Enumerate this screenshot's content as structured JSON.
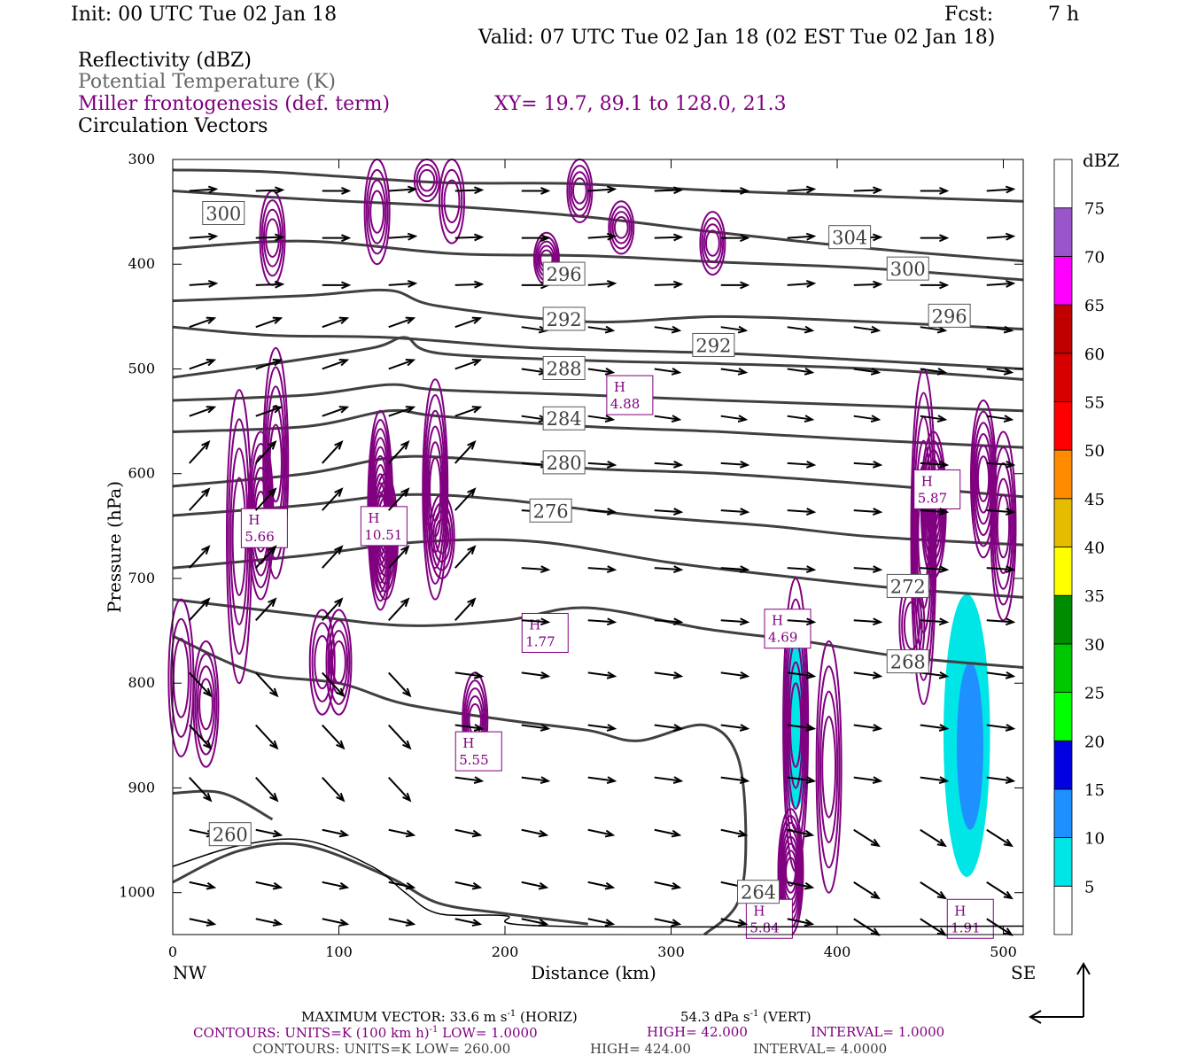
{
  "header": {
    "init": "Init: 00 UTC Tue 02 Jan 18",
    "fcst_label": "Fcst:",
    "fcst_value": "7 h",
    "valid": "Valid: 07 UTC Tue 02 Jan 18 (02 EST Tue 02 Jan 18)"
  },
  "legend": {
    "reflectivity": "Reflectivity (dBZ)",
    "theta": "Potential Temperature (K)",
    "frontogenesis": "Miller frontogenesis (def. term)",
    "xy": "XY=  19.7, 89.1 to 128.0, 21.3",
    "vectors": "Circulation Vectors"
  },
  "footer": {
    "max_vector_prefix": "MAXIMUM VECTOR:",
    "max_vector_horiz": "33.6 m s",
    "max_vector_horiz_sup": "-1",
    "max_vector_horiz_unit": "(HORIZ)",
    "max_vector_vert": "54.3 dPa s",
    "max_vector_vert_sup": "-1",
    "max_vector_vert_unit": "(VERT)",
    "contours1_prefix": "CONTOURS:  UNITS=K (100 km h)",
    "contours1_sup": "-1",
    "contours1_low": "LOW=   1.0000",
    "contours1_high": "HIGH=  42.000",
    "contours1_interval": "INTERVAL=    1.0000",
    "contours2_prefix": "CONTOURS:  UNITS=K  LOW=   260.00",
    "contours2_high": "HIGH=  424.00",
    "contours2_interval": "INTERVAL=    4.0000"
  },
  "colors": {
    "frontogenesis": "#800080",
    "theta": "#404040",
    "vectors": "#000000"
  },
  "colorbar": {
    "unit": "dBZ",
    "ticks": [
      "5",
      "10",
      "15",
      "20",
      "25",
      "30",
      "35",
      "40",
      "45",
      "50",
      "55",
      "60",
      "65",
      "70",
      "75"
    ],
    "colors": [
      "#ffffff",
      "#00e5e5",
      "#1e90ff",
      "#0000e0",
      "#00ff00",
      "#00c800",
      "#008c00",
      "#ffff00",
      "#e5bc00",
      "#ff8c00",
      "#ff0000",
      "#d60000",
      "#c00000",
      "#ff00ff",
      "#9955c9",
      "#ffffff"
    ]
  },
  "chart_data": {
    "type": "cross-section",
    "xlabel": "Distance (km)",
    "ylabel": "Pressure (hPa)",
    "xlim": [
      0,
      512
    ],
    "ylim": [
      1040,
      300
    ],
    "x_ticks": [
      "0",
      "100",
      "200",
      "300",
      "400",
      "500"
    ],
    "y_ticks": [
      "300",
      "400",
      "500",
      "600",
      "700",
      "800",
      "900",
      "1000"
    ],
    "x_left_label": "NW",
    "x_right_label": "SE",
    "theta_contours": [
      {
        "label": "304",
        "lx": 395,
        "lp": 375,
        "points": [
          [
            0,
            310
          ],
          [
            60,
            312
          ],
          [
            160,
            322
          ],
          [
            240,
            323
          ],
          [
            330,
            330
          ],
          [
            420,
            335
          ],
          [
            512,
            340
          ]
        ]
      },
      {
        "label": "300",
        "lx": 18,
        "lp": 352,
        "points": [
          [
            0,
            330
          ],
          [
            80,
            338
          ],
          [
            170,
            345
          ],
          [
            250,
            355
          ],
          [
            330,
            370
          ],
          [
            420,
            385
          ],
          [
            512,
            397
          ]
        ]
      },
      {
        "label": "300",
        "lx": 430,
        "lp": 405,
        "points": [
          [
            0,
            385
          ],
          [
            80,
            378
          ],
          [
            170,
            390
          ],
          [
            250,
            392
          ],
          [
            330,
            398
          ],
          [
            420,
            404
          ],
          [
            512,
            415
          ]
        ]
      },
      {
        "label": "296",
        "lx": 223,
        "lp": 410,
        "points": [
          [
            0,
            435
          ],
          [
            80,
            430
          ],
          [
            130,
            425
          ],
          [
            160,
            440
          ],
          [
            250,
            455
          ],
          [
            330,
            450
          ],
          [
            420,
            455
          ],
          [
            512,
            462
          ]
        ]
      },
      {
        "label": "296",
        "lx": 455,
        "lp": 450,
        "points": [
          [
            0,
            460
          ],
          [
            60,
            468
          ],
          [
            130,
            470
          ],
          [
            220,
            480
          ],
          [
            330,
            485
          ],
          [
            420,
            492
          ],
          [
            512,
            500
          ]
        ]
      },
      {
        "label": "292",
        "lx": 223,
        "lp": 453,
        "points": [
          [
            0,
            508
          ],
          [
            60,
            495
          ],
          [
            120,
            480
          ],
          [
            140,
            470
          ],
          [
            160,
            485
          ],
          [
            250,
            492
          ],
          [
            330,
            495
          ],
          [
            420,
            500
          ],
          [
            512,
            510
          ]
        ]
      },
      {
        "label": "292",
        "lx": 313,
        "lp": 478,
        "points": [
          [
            0,
            530
          ],
          [
            80,
            525
          ],
          [
            130,
            515
          ],
          [
            160,
            520
          ],
          [
            250,
            525
          ],
          [
            330,
            530
          ],
          [
            420,
            535
          ],
          [
            512,
            540
          ]
        ]
      },
      {
        "label": "288",
        "lx": 223,
        "lp": 500,
        "points": [
          [
            0,
            560
          ],
          [
            80,
            555
          ],
          [
            130,
            540
          ],
          [
            160,
            545
          ],
          [
            250,
            555
          ],
          [
            330,
            560
          ],
          [
            420,
            568
          ],
          [
            512,
            575
          ]
        ]
      },
      {
        "label": "284",
        "lx": 223,
        "lp": 548,
        "points": [
          [
            0,
            612
          ],
          [
            80,
            600
          ],
          [
            130,
            585
          ],
          [
            170,
            585
          ],
          [
            250,
            595
          ],
          [
            330,
            600
          ],
          [
            420,
            610
          ],
          [
            512,
            622
          ]
        ]
      },
      {
        "label": "280",
        "lx": 223,
        "lp": 590,
        "points": [
          [
            0,
            640
          ],
          [
            80,
            630
          ],
          [
            140,
            620
          ],
          [
            200,
            625
          ],
          [
            280,
            640
          ],
          [
            360,
            650
          ],
          [
            420,
            660
          ],
          [
            512,
            668
          ]
        ]
      },
      {
        "label": "276",
        "lx": 215,
        "lp": 636,
        "points": [
          [
            0,
            690
          ],
          [
            80,
            678
          ],
          [
            150,
            665
          ],
          [
            220,
            665
          ],
          [
            300,
            685
          ],
          [
            380,
            700
          ],
          [
            440,
            710
          ],
          [
            512,
            718
          ]
        ]
      },
      {
        "label": "272",
        "lx": 430,
        "lp": 708,
        "points": [
          [
            0,
            720
          ],
          [
            80,
            735
          ],
          [
            140,
            745
          ],
          [
            200,
            740
          ],
          [
            250,
            728
          ],
          [
            320,
            748
          ],
          [
            380,
            760
          ],
          [
            440,
            775
          ],
          [
            512,
            785
          ]
        ]
      },
      {
        "label": "268",
        "lx": 430,
        "lp": 780,
        "points": [
          [
            0,
            755
          ],
          [
            50,
            790
          ],
          [
            100,
            800
          ],
          [
            140,
            820
          ],
          [
            200,
            835
          ],
          [
            250,
            845
          ],
          [
            280,
            855
          ],
          [
            320,
            840
          ],
          [
            340,
            870
          ],
          [
            345,
            950
          ],
          [
            340,
            1010
          ],
          [
            320,
            1040
          ]
        ]
      },
      {
        "label": "264",
        "lx": 340,
        "lp": 1000,
        "points": [
          [
            0,
            905
          ],
          [
            30,
            905
          ],
          [
            60,
            930
          ]
        ]
      },
      {
        "label": "260",
        "lx": 22,
        "lp": 945,
        "points": [
          [
            0,
            990
          ],
          [
            40,
            960
          ],
          [
            80,
            955
          ],
          [
            130,
            985
          ],
          [
            160,
            1010
          ],
          [
            200,
            1020
          ],
          [
            250,
            1030
          ]
        ]
      }
    ],
    "frontogenesis_maxima": [
      {
        "label": "H",
        "value": "5.66",
        "x": 53,
        "p": 652
      },
      {
        "label": "H",
        "value": "10.51",
        "x": 125,
        "p": 650
      },
      {
        "label": "H",
        "value": "1.77",
        "x": 222,
        "p": 752
      },
      {
        "label": "H",
        "value": "4.88",
        "x": 273,
        "p": 525
      },
      {
        "label": "H",
        "value": "5.55",
        "x": 182,
        "p": 865
      },
      {
        "label": "H",
        "value": "4.69",
        "x": 368,
        "p": 748
      },
      {
        "label": "H",
        "value": "5.84",
        "x": 357,
        "p": 1025
      },
      {
        "label": "H",
        "value": "5.87",
        "x": 458,
        "p": 615
      },
      {
        "label": "H",
        "value": "1.91",
        "x": 478,
        "p": 1025
      }
    ],
    "reflectivity_cells": [
      {
        "x": 375,
        "p": 840,
        "dx": 8,
        "dp": 80,
        "dbz": 5
      },
      {
        "x": 478,
        "p": 850,
        "dx": 14,
        "dp": 135,
        "dbz": 5
      },
      {
        "x": 480,
        "p": 860,
        "dx": 8,
        "dp": 80,
        "dbz": 10
      }
    ]
  }
}
